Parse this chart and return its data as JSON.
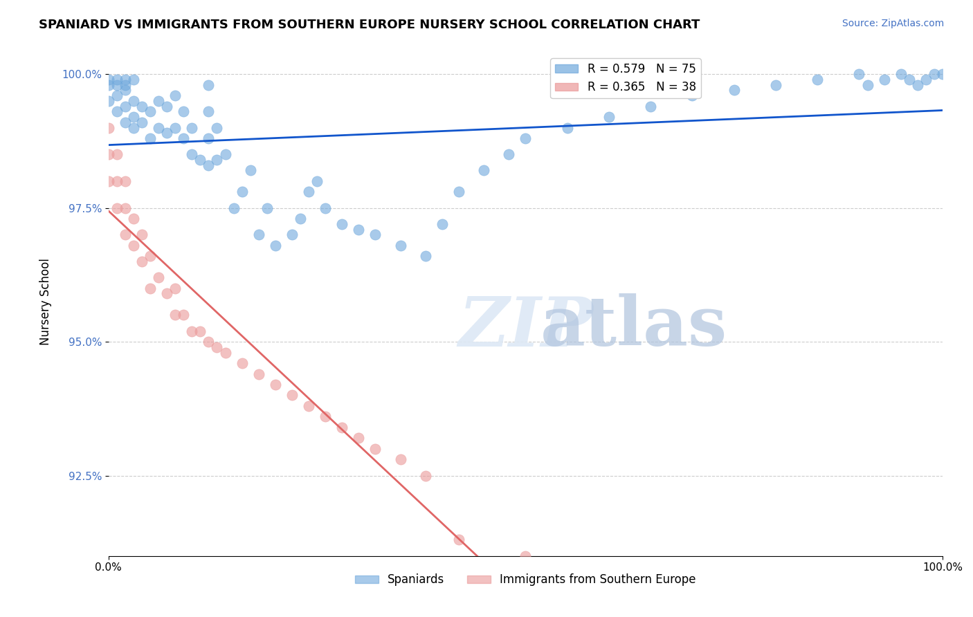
{
  "title": "SPANIARD VS IMMIGRANTS FROM SOUTHERN EUROPE NURSERY SCHOOL CORRELATION CHART",
  "source_text": "Source: ZipAtlas.com",
  "ylabel": "Nursery School",
  "xlabel": "",
  "xlim": [
    0.0,
    1.0
  ],
  "ylim": [
    0.91,
    1.005
  ],
  "yticks": [
    0.925,
    0.95,
    0.975,
    1.0
  ],
  "ytick_labels": [
    "92.5%",
    "95.0%",
    "97.5%",
    "100.0%"
  ],
  "xticks": [
    0.0,
    1.0
  ],
  "xtick_labels": [
    "0.0%",
    "100.0%"
  ],
  "legend_labels": [
    "Spaniards",
    "Immigrants from Southern Europe"
  ],
  "blue_r": 0.579,
  "blue_n": 75,
  "pink_r": 0.365,
  "pink_n": 38,
  "blue_color": "#6fa8dc",
  "pink_color": "#ea9999",
  "blue_line_color": "#1155cc",
  "pink_line_color": "#e06666",
  "background_color": "#ffffff",
  "watermark_text": "ZIPatlas",
  "blue_points_x": [
    0.0,
    0.0,
    0.0,
    0.01,
    0.01,
    0.01,
    0.01,
    0.02,
    0.02,
    0.02,
    0.02,
    0.02,
    0.03,
    0.03,
    0.03,
    0.03,
    0.04,
    0.04,
    0.05,
    0.05,
    0.06,
    0.06,
    0.07,
    0.07,
    0.08,
    0.08,
    0.09,
    0.09,
    0.1,
    0.1,
    0.11,
    0.12,
    0.12,
    0.12,
    0.12,
    0.13,
    0.13,
    0.14,
    0.15,
    0.16,
    0.17,
    0.18,
    0.19,
    0.2,
    0.22,
    0.23,
    0.24,
    0.25,
    0.26,
    0.28,
    0.3,
    0.32,
    0.35,
    0.38,
    0.4,
    0.42,
    0.45,
    0.48,
    0.5,
    0.55,
    0.6,
    0.65,
    0.7,
    0.75,
    0.8,
    0.85,
    0.9,
    0.91,
    0.93,
    0.95,
    0.96,
    0.97,
    0.98,
    0.99,
    1.0
  ],
  "blue_points_y": [
    0.995,
    0.998,
    0.999,
    0.993,
    0.996,
    0.998,
    0.999,
    0.991,
    0.994,
    0.997,
    0.998,
    0.999,
    0.99,
    0.992,
    0.995,
    0.999,
    0.991,
    0.994,
    0.988,
    0.993,
    0.99,
    0.995,
    0.989,
    0.994,
    0.99,
    0.996,
    0.988,
    0.993,
    0.985,
    0.99,
    0.984,
    0.983,
    0.988,
    0.993,
    0.998,
    0.984,
    0.99,
    0.985,
    0.975,
    0.978,
    0.982,
    0.97,
    0.975,
    0.968,
    0.97,
    0.973,
    0.978,
    0.98,
    0.975,
    0.972,
    0.971,
    0.97,
    0.968,
    0.966,
    0.972,
    0.978,
    0.982,
    0.985,
    0.988,
    0.99,
    0.992,
    0.994,
    0.996,
    0.997,
    0.998,
    0.999,
    1.0,
    0.998,
    0.999,
    1.0,
    0.999,
    0.998,
    0.999,
    1.0,
    1.0
  ],
  "pink_points_x": [
    0.0,
    0.0,
    0.0,
    0.01,
    0.01,
    0.01,
    0.02,
    0.02,
    0.02,
    0.03,
    0.03,
    0.04,
    0.04,
    0.05,
    0.05,
    0.06,
    0.07,
    0.08,
    0.08,
    0.09,
    0.1,
    0.11,
    0.12,
    0.13,
    0.14,
    0.16,
    0.18,
    0.2,
    0.22,
    0.24,
    0.26,
    0.28,
    0.3,
    0.32,
    0.35,
    0.38,
    0.42,
    0.5
  ],
  "pink_points_y": [
    0.98,
    0.985,
    0.99,
    0.975,
    0.98,
    0.985,
    0.97,
    0.975,
    0.98,
    0.968,
    0.973,
    0.965,
    0.97,
    0.96,
    0.966,
    0.962,
    0.959,
    0.955,
    0.96,
    0.955,
    0.952,
    0.952,
    0.95,
    0.949,
    0.948,
    0.946,
    0.944,
    0.942,
    0.94,
    0.938,
    0.936,
    0.934,
    0.932,
    0.93,
    0.928,
    0.925,
    0.913,
    0.91
  ]
}
